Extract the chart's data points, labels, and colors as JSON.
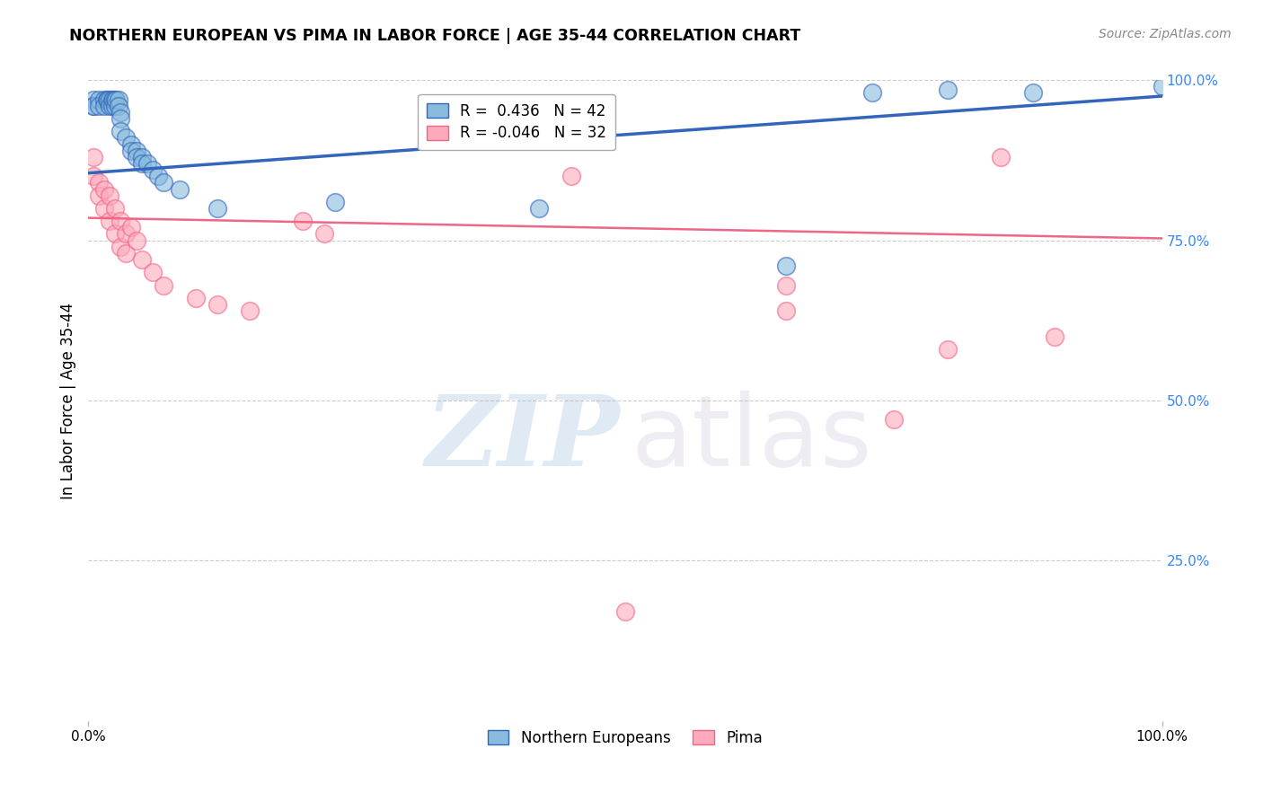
{
  "title": "NORTHERN EUROPEAN VS PIMA IN LABOR FORCE | AGE 35-44 CORRELATION CHART",
  "source": "Source: ZipAtlas.com",
  "ylabel": "In Labor Force | Age 35-44",
  "xlim": [
    0,
    1
  ],
  "ylim": [
    0,
    1
  ],
  "ytick_vals_right": [
    1.0,
    0.75,
    0.5,
    0.25
  ],
  "ytick_labels_right": [
    "100.0%",
    "75.0%",
    "50.0%",
    "25.0%"
  ],
  "legend_R_blue": "0.436",
  "legend_N_blue": "42",
  "legend_R_pink": "-0.046",
  "legend_N_pink": "32",
  "blue_color": "#88BBDD",
  "pink_color": "#FFAABB",
  "blue_line_color": "#3366BB",
  "pink_line_color": "#EE6688",
  "watermark_zip": "ZIP",
  "watermark_atlas": "atlas",
  "blue_points": [
    [
      0.005,
      0.97
    ],
    [
      0.005,
      0.96
    ],
    [
      0.005,
      0.96
    ],
    [
      0.01,
      0.97
    ],
    [
      0.01,
      0.96
    ],
    [
      0.015,
      0.97
    ],
    [
      0.015,
      0.96
    ],
    [
      0.017,
      0.97
    ],
    [
      0.018,
      0.97
    ],
    [
      0.02,
      0.97
    ],
    [
      0.02,
      0.96
    ],
    [
      0.022,
      0.97
    ],
    [
      0.022,
      0.96
    ],
    [
      0.023,
      0.97
    ],
    [
      0.025,
      0.97
    ],
    [
      0.025,
      0.96
    ],
    [
      0.026,
      0.97
    ],
    [
      0.028,
      0.97
    ],
    [
      0.028,
      0.96
    ],
    [
      0.03,
      0.95
    ],
    [
      0.03,
      0.94
    ],
    [
      0.03,
      0.92
    ],
    [
      0.035,
      0.91
    ],
    [
      0.04,
      0.9
    ],
    [
      0.04,
      0.89
    ],
    [
      0.045,
      0.89
    ],
    [
      0.045,
      0.88
    ],
    [
      0.05,
      0.88
    ],
    [
      0.05,
      0.87
    ],
    [
      0.055,
      0.87
    ],
    [
      0.06,
      0.86
    ],
    [
      0.065,
      0.85
    ],
    [
      0.07,
      0.84
    ],
    [
      0.085,
      0.83
    ],
    [
      0.12,
      0.8
    ],
    [
      0.23,
      0.81
    ],
    [
      0.42,
      0.8
    ],
    [
      0.65,
      0.71
    ],
    [
      0.73,
      0.98
    ],
    [
      0.8,
      0.985
    ],
    [
      0.88,
      0.98
    ],
    [
      1.0,
      0.99
    ]
  ],
  "pink_points": [
    [
      0.005,
      0.88
    ],
    [
      0.005,
      0.85
    ],
    [
      0.01,
      0.84
    ],
    [
      0.01,
      0.82
    ],
    [
      0.015,
      0.83
    ],
    [
      0.015,
      0.8
    ],
    [
      0.02,
      0.82
    ],
    [
      0.02,
      0.78
    ],
    [
      0.025,
      0.8
    ],
    [
      0.025,
      0.76
    ],
    [
      0.03,
      0.78
    ],
    [
      0.03,
      0.74
    ],
    [
      0.035,
      0.76
    ],
    [
      0.035,
      0.73
    ],
    [
      0.04,
      0.77
    ],
    [
      0.045,
      0.75
    ],
    [
      0.05,
      0.72
    ],
    [
      0.06,
      0.7
    ],
    [
      0.07,
      0.68
    ],
    [
      0.1,
      0.66
    ],
    [
      0.12,
      0.65
    ],
    [
      0.15,
      0.64
    ],
    [
      0.2,
      0.78
    ],
    [
      0.22,
      0.76
    ],
    [
      0.45,
      0.85
    ],
    [
      0.5,
      0.17
    ],
    [
      0.65,
      0.68
    ],
    [
      0.65,
      0.64
    ],
    [
      0.75,
      0.47
    ],
    [
      0.8,
      0.58
    ],
    [
      0.85,
      0.88
    ],
    [
      0.9,
      0.6
    ]
  ],
  "grid_color": "#CCCCCC",
  "background_color": "#FFFFFF"
}
